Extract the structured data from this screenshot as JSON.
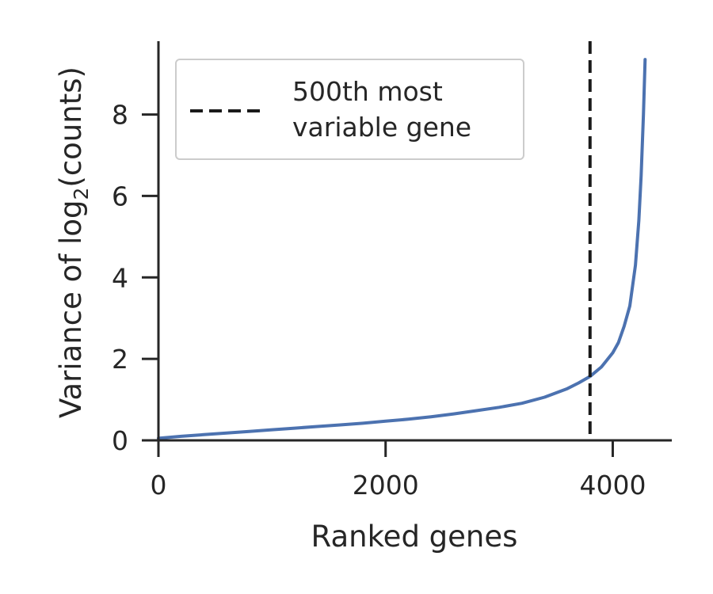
{
  "chart_data": {
    "type": "line",
    "xlabel": "Ranked genes",
    "ylabel_prefix": "Variance of log",
    "ylabel_subscript": "2",
    "ylabel_suffix": "(counts)",
    "xlim": [
      0,
      4520
    ],
    "ylim": [
      0,
      9.8
    ],
    "x_ticks": [
      0,
      2000,
      4000
    ],
    "x_tick_labels": [
      "0",
      "2000",
      "4000"
    ],
    "y_ticks": [
      0,
      2,
      4,
      6,
      8
    ],
    "y_tick_labels": [
      "0",
      "2",
      "4",
      "6",
      "8"
    ],
    "grid": false,
    "legend": {
      "position": "top-left",
      "entries": [
        {
          "label_line1": "500th most",
          "label_line2": "variable gene",
          "style": "dashed",
          "color": "#1a1a1a"
        }
      ]
    },
    "series": [
      {
        "color": "#4c72b0",
        "points": [
          [
            0,
            0.05
          ],
          [
            200,
            0.1
          ],
          [
            400,
            0.14
          ],
          [
            600,
            0.18
          ],
          [
            800,
            0.22
          ],
          [
            1000,
            0.26
          ],
          [
            1200,
            0.3
          ],
          [
            1400,
            0.34
          ],
          [
            1600,
            0.38
          ],
          [
            1800,
            0.42
          ],
          [
            2000,
            0.47
          ],
          [
            2200,
            0.52
          ],
          [
            2400,
            0.58
          ],
          [
            2600,
            0.65
          ],
          [
            2800,
            0.73
          ],
          [
            3000,
            0.81
          ],
          [
            3200,
            0.91
          ],
          [
            3400,
            1.06
          ],
          [
            3600,
            1.27
          ],
          [
            3700,
            1.41
          ],
          [
            3800,
            1.57
          ],
          [
            3900,
            1.8
          ],
          [
            4000,
            2.15
          ],
          [
            4050,
            2.4
          ],
          [
            4100,
            2.8
          ],
          [
            4150,
            3.3
          ],
          [
            4200,
            4.3
          ],
          [
            4230,
            5.4
          ],
          [
            4250,
            6.5
          ],
          [
            4270,
            8.0
          ],
          [
            4285,
            9.35
          ]
        ]
      }
    ],
    "vline": {
      "x": 3800,
      "style": "dashed",
      "color": "#1a1a1a"
    }
  }
}
